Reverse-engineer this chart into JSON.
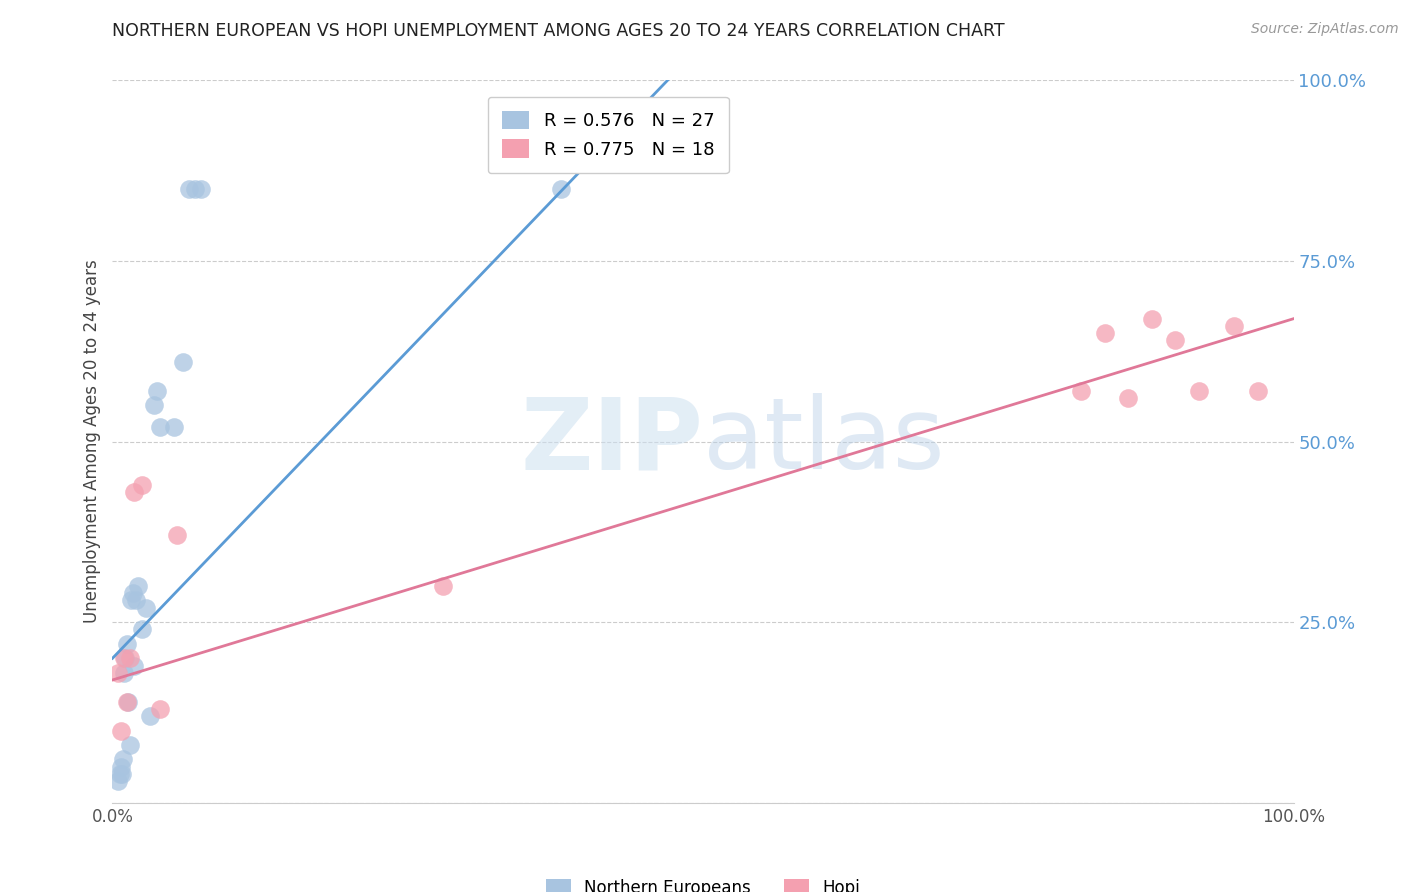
{
  "title": "NORTHERN EUROPEAN VS HOPI UNEMPLOYMENT AMONG AGES 20 TO 24 YEARS CORRELATION CHART",
  "source": "Source: ZipAtlas.com",
  "ylabel": "Unemployment Among Ages 20 to 24 years",
  "watermark_zip": "ZIP",
  "watermark_atlas": "atlas",
  "xlim": [
    0,
    1
  ],
  "ylim": [
    0,
    1
  ],
  "yticks": [
    0.0,
    0.25,
    0.5,
    0.75,
    1.0
  ],
  "ytick_labels": [
    "",
    "25.0%",
    "50.0%",
    "75.0%",
    "100.0%"
  ],
  "xtick_labels": [
    "0.0%",
    "",
    "",
    "",
    "100.0%"
  ],
  "ne_scatter_x": [
    0.005,
    0.006,
    0.007,
    0.008,
    0.009,
    0.01,
    0.011,
    0.012,
    0.013,
    0.015,
    0.016,
    0.017,
    0.018,
    0.02,
    0.022,
    0.025,
    0.028,
    0.032,
    0.035,
    0.038,
    0.04,
    0.052,
    0.06,
    0.065,
    0.07,
    0.075,
    0.38
  ],
  "ne_scatter_y": [
    0.03,
    0.04,
    0.05,
    0.04,
    0.06,
    0.18,
    0.2,
    0.22,
    0.14,
    0.08,
    0.28,
    0.29,
    0.19,
    0.28,
    0.3,
    0.24,
    0.27,
    0.12,
    0.55,
    0.57,
    0.52,
    0.52,
    0.61,
    0.85,
    0.85,
    0.85,
    0.85
  ],
  "hopi_scatter_x": [
    0.005,
    0.007,
    0.01,
    0.012,
    0.015,
    0.018,
    0.025,
    0.04,
    0.055,
    0.28,
    0.82,
    0.84,
    0.86,
    0.88,
    0.9,
    0.92,
    0.95,
    0.97
  ],
  "hopi_scatter_y": [
    0.18,
    0.1,
    0.2,
    0.14,
    0.2,
    0.43,
    0.44,
    0.13,
    0.37,
    0.3,
    0.57,
    0.65,
    0.56,
    0.67,
    0.64,
    0.57,
    0.66,
    0.57
  ],
  "ne_line_x": [
    0.0,
    0.47
  ],
  "ne_line_y": [
    0.2,
    1.0
  ],
  "hopi_line_x": [
    0.0,
    1.0
  ],
  "hopi_line_y": [
    0.17,
    0.67
  ],
  "ne_color": "#a8c4e0",
  "ne_line_color": "#5b9bd5",
  "hopi_color": "#f4a0b0",
  "hopi_line_color": "#e07898",
  "right_tick_color": "#5b9bd5",
  "background_color": "#ffffff",
  "grid_color": "#cccccc"
}
